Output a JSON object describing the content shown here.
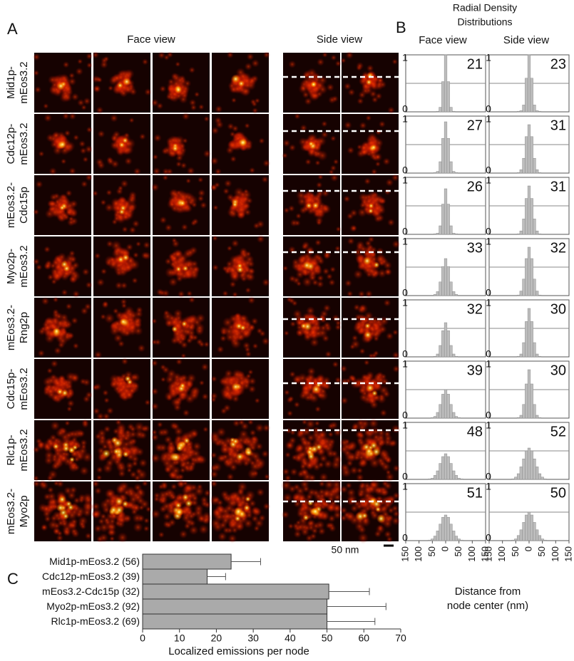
{
  "panel_a": {
    "label": "A",
    "face_title": "Face view",
    "side_title": "Side view",
    "rows": [
      [
        "Mid1p-",
        "mEos3.2"
      ],
      [
        "Cdc12p-",
        "mEos3.2"
      ],
      [
        "mEos3.2-",
        "Cdc15p"
      ],
      [
        "Myo2p-",
        "mEos3.2"
      ],
      [
        "mEos3.2-",
        "Rng2p"
      ],
      [
        "Cdc15p-",
        "mEos3.2"
      ],
      [
        "Rlc1p-",
        "mEos3.2"
      ],
      [
        "mEos3.2-",
        "Myo2p"
      ]
    ],
    "scale_bar": "50 nm"
  },
  "chart_data": [
    {
      "type": "histogram",
      "label": "B",
      "title": [
        "Radial Density",
        "Distributions"
      ],
      "columns": [
        "Face view",
        "Side view"
      ],
      "xlabel": [
        "Distance from",
        "node center (nm)"
      ],
      "bins": [
        -145,
        -135,
        -125,
        -115,
        -105,
        -95,
        -85,
        -75,
        -65,
        -55,
        -45,
        -35,
        -25,
        -15,
        -5,
        5,
        15,
        25,
        35,
        45,
        55,
        65,
        75,
        85,
        95,
        105,
        115,
        125,
        135,
        145
      ],
      "xlim": [
        -150,
        150
      ],
      "xticks": [
        {
          "value": -150,
          "label": "150"
        },
        {
          "value": -100,
          "label": "100"
        },
        {
          "value": -50,
          "label": "50"
        },
        0,
        50,
        100,
        150
      ],
      "ylim": [
        0,
        1
      ],
      "yticks": [
        0,
        1
      ],
      "gridlines": [
        0.5
      ],
      "color": "#bdbdbd",
      "panels": [
        {
          "face": {
            "width": 21,
            "values": [
              0,
              0,
              0,
              0,
              0,
              0,
              0,
              0,
              0,
              0,
              0,
              0.01,
              0.08,
              0.53,
              1,
              0.53,
              0.08,
              0.01,
              0,
              0,
              0,
              0,
              0,
              0,
              0,
              0,
              0,
              0,
              0
            ]
          },
          "side": {
            "width": 23,
            "values": [
              0,
              0,
              0,
              0,
              0,
              0,
              0,
              0,
              0,
              0,
              0.01,
              0.02,
              0.12,
              0.59,
              1,
              0.59,
              0.12,
              0.02,
              0.01,
              0,
              0,
              0,
              0,
              0,
              0,
              0,
              0,
              0,
              0
            ]
          }
        },
        {
          "face": {
            "width": 27,
            "values": [
              0,
              0,
              0,
              0,
              0,
              0,
              0,
              0,
              0,
              0,
              0.01,
              0.03,
              0.2,
              0.61,
              0.9,
              0.61,
              0.2,
              0.03,
              0.01,
              0,
              0,
              0,
              0,
              0,
              0,
              0,
              0,
              0,
              0
            ]
          },
          "side": {
            "width": 31,
            "values": [
              0,
              0,
              0,
              0,
              0,
              0,
              0,
              0,
              0,
              0,
              0.01,
              0.06,
              0.26,
              0.64,
              0.85,
              0.64,
              0.26,
              0.06,
              0.01,
              0,
              0,
              0,
              0,
              0,
              0,
              0,
              0,
              0,
              0
            ]
          }
        },
        {
          "face": {
            "width": 26,
            "values": [
              0,
              0,
              0,
              0,
              0,
              0,
              0,
              0,
              0,
              0,
              0.01,
              0.02,
              0.15,
              0.53,
              0.8,
              0.53,
              0.15,
              0.02,
              0.01,
              0,
              0,
              0,
              0,
              0,
              0,
              0,
              0,
              0,
              0
            ]
          },
          "side": {
            "width": 31,
            "values": [
              0,
              0,
              0,
              0,
              0,
              0,
              0,
              0,
              0,
              0,
              0.01,
              0.06,
              0.27,
              0.63,
              0.85,
              0.63,
              0.27,
              0.06,
              0.01,
              0,
              0,
              0,
              0,
              0,
              0,
              0,
              0,
              0,
              0
            ]
          }
        },
        {
          "face": {
            "width": 33,
            "values": [
              0,
              0,
              0,
              0,
              0,
              0,
              0,
              0,
              0,
              0,
              0.02,
              0.07,
              0.24,
              0.51,
              0.65,
              0.51,
              0.24,
              0.07,
              0.02,
              0,
              0,
              0,
              0,
              0,
              0,
              0,
              0,
              0,
              0
            ]
          },
          "side": {
            "width": 32,
            "values": [
              0,
              0,
              0,
              0,
              0,
              0,
              0,
              0,
              0,
              0,
              0.01,
              0.08,
              0.29,
              0.65,
              0.85,
              0.65,
              0.29,
              0.08,
              0.01,
              0,
              0,
              0,
              0,
              0,
              0,
              0,
              0,
              0,
              0
            ]
          }
        },
        {
          "face": {
            "width": 32,
            "values": [
              0,
              0,
              0,
              0,
              0,
              0,
              0,
              0,
              0,
              0,
              0.01,
              0.05,
              0.2,
              0.46,
              0.6,
              0.46,
              0.2,
              0.05,
              0.01,
              0,
              0,
              0,
              0,
              0,
              0,
              0,
              0,
              0,
              0
            ]
          },
          "side": {
            "width": 30,
            "values": [
              0,
              0,
              0,
              0,
              0,
              0,
              0,
              0,
              0,
              0,
              0.01,
              0.05,
              0.25,
              0.62,
              0.85,
              0.62,
              0.25,
              0.05,
              0.01,
              0,
              0,
              0,
              0,
              0,
              0,
              0,
              0,
              0,
              0
            ]
          }
        },
        {
          "face": {
            "width": 39,
            "values": [
              0,
              0,
              0,
              0,
              0,
              0,
              0,
              0,
              0,
              0.01,
              0.03,
              0.1,
              0.24,
              0.42,
              0.5,
              0.42,
              0.24,
              0.1,
              0.03,
              0.01,
              0,
              0,
              0,
              0,
              0,
              0,
              0,
              0,
              0
            ]
          },
          "side": {
            "width": 30,
            "values": [
              0,
              0,
              0,
              0,
              0,
              0,
              0,
              0,
              0,
              0,
              0.01,
              0.05,
              0.24,
              0.6,
              0.85,
              0.6,
              0.24,
              0.05,
              0.01,
              0,
              0,
              0,
              0,
              0,
              0,
              0,
              0,
              0,
              0
            ]
          }
        },
        {
          "face": {
            "width": 48,
            "values": [
              0,
              0,
              0,
              0,
              0,
              0,
              0,
              0,
              0.01,
              0.02,
              0.07,
              0.15,
              0.28,
              0.4,
              0.45,
              0.4,
              0.28,
              0.15,
              0.07,
              0.02,
              0.01,
              0,
              0,
              0,
              0,
              0,
              0,
              0,
              0
            ]
          },
          "side": {
            "width": 52,
            "values": [
              0,
              0,
              0,
              0,
              0,
              0,
              0,
              0,
              0.01,
              0.04,
              0.1,
              0.22,
              0.36,
              0.5,
              0.55,
              0.5,
              0.36,
              0.22,
              0.1,
              0.04,
              0.01,
              0,
              0,
              0,
              0,
              0,
              0,
              0,
              0
            ]
          }
        },
        {
          "face": {
            "width": 51,
            "values": [
              0,
              0,
              0,
              0,
              0,
              0,
              0,
              0,
              0.01,
              0.03,
              0.08,
              0.17,
              0.29,
              0.41,
              0.45,
              0.41,
              0.29,
              0.17,
              0.08,
              0.03,
              0.01,
              0,
              0,
              0,
              0,
              0,
              0,
              0,
              0
            ]
          },
          "side": {
            "width": 50,
            "values": [
              0,
              0,
              0,
              0,
              0,
              0,
              0,
              0,
              0.01,
              0.03,
              0.09,
              0.19,
              0.32,
              0.45,
              0.5,
              0.45,
              0.32,
              0.19,
              0.09,
              0.03,
              0.01,
              0,
              0,
              0,
              0,
              0,
              0,
              0,
              0
            ]
          }
        }
      ]
    },
    {
      "type": "bar",
      "orientation": "horizontal",
      "label": "C",
      "categories": [
        "Mid1p-mEos3.2 (56)",
        "Cdc12p-mEos3.2 (39)",
        "mEos3.2-Cdc15p (32)",
        "Myo2p-mEos3.2 (92)",
        "Rlc1p-mEos3.2 (69)"
      ],
      "values": [
        24,
        17.5,
        50.5,
        50,
        50
      ],
      "errors": [
        8,
        5,
        11,
        16,
        13
      ],
      "xlim": [
        0,
        70
      ],
      "xticks": [
        0,
        10,
        20,
        30,
        40,
        50,
        60,
        70
      ],
      "xlabel": "Localized emissions per node",
      "color": "#aaaaaa"
    }
  ]
}
